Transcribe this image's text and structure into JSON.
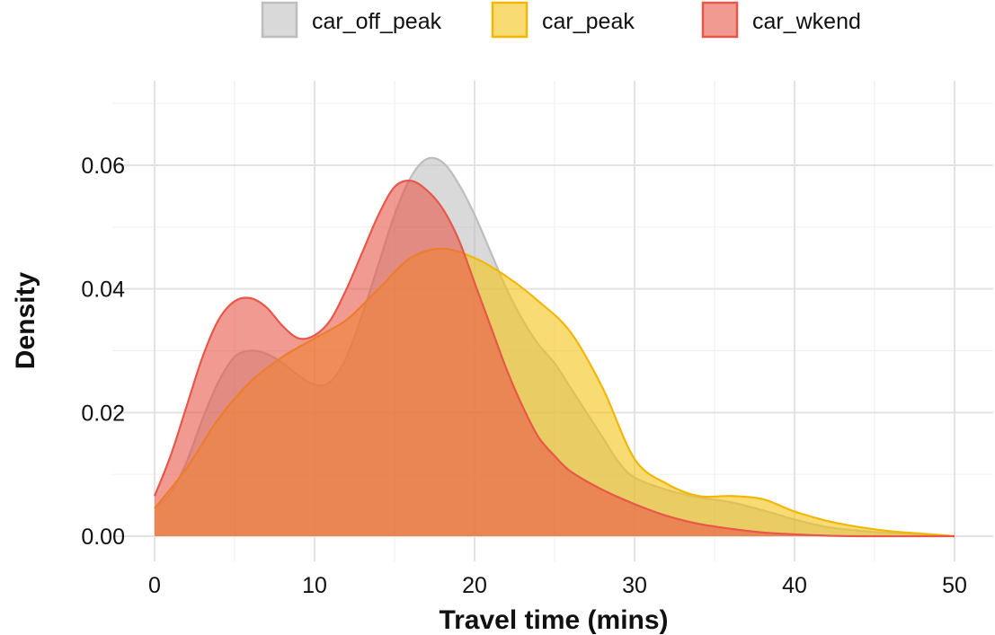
{
  "chart_data": {
    "type": "area",
    "title": "",
    "xlabel": "Travel time (mins)",
    "ylabel": "Density",
    "xlim": [
      0,
      50
    ],
    "ylim": [
      0,
      0.07
    ],
    "x_ticks": [
      0,
      10,
      20,
      30,
      40,
      50
    ],
    "x_tick_labels": [
      "0",
      "10",
      "20",
      "30",
      "40",
      "50"
    ],
    "y_ticks": [
      0,
      0.02,
      0.04,
      0.06
    ],
    "y_tick_labels": [
      "0.00",
      "0.02",
      "0.04",
      "0.06"
    ],
    "grid": true,
    "legend_position": "top",
    "series": [
      {
        "name": "car_off_peak",
        "fill": "#bfbfbf",
        "stroke": "#bdbdbd",
        "points": [
          [
            0,
            0.0045
          ],
          [
            1,
            0.007
          ],
          [
            2,
            0.012
          ],
          [
            3,
            0.019
          ],
          [
            4,
            0.025
          ],
          [
            5,
            0.029
          ],
          [
            6,
            0.03
          ],
          [
            7,
            0.0295
          ],
          [
            8,
            0.028
          ],
          [
            9,
            0.026
          ],
          [
            10,
            0.0245
          ],
          [
            11,
            0.025
          ],
          [
            12,
            0.029
          ],
          [
            13,
            0.036
          ],
          [
            14,
            0.044
          ],
          [
            15,
            0.052
          ],
          [
            16,
            0.058
          ],
          [
            17,
            0.061
          ],
          [
            18,
            0.0605
          ],
          [
            19,
            0.057
          ],
          [
            20,
            0.052
          ],
          [
            21,
            0.046
          ],
          [
            22,
            0.04
          ],
          [
            23,
            0.035
          ],
          [
            24,
            0.031
          ],
          [
            25,
            0.028
          ],
          [
            26,
            0.024
          ],
          [
            27,
            0.02
          ],
          [
            28,
            0.016
          ],
          [
            29,
            0.012
          ],
          [
            30,
            0.0095
          ],
          [
            32,
            0.0075
          ],
          [
            34,
            0.0063
          ],
          [
            36,
            0.0055
          ],
          [
            38,
            0.0042
          ],
          [
            40,
            0.0027
          ],
          [
            42,
            0.0015
          ],
          [
            44,
            0.0009
          ],
          [
            46,
            0.0005
          ],
          [
            48,
            0.0003
          ],
          [
            50,
            0.0
          ]
        ]
      },
      {
        "name": "car_peak",
        "fill": "#f5c316",
        "stroke": "#f2b705",
        "points": [
          [
            0,
            0.0045
          ],
          [
            2,
            0.011
          ],
          [
            4,
            0.019
          ],
          [
            6,
            0.025
          ],
          [
            8,
            0.029
          ],
          [
            10,
            0.032
          ],
          [
            12,
            0.035
          ],
          [
            14,
            0.04
          ],
          [
            16,
            0.045
          ],
          [
            18,
            0.0465
          ],
          [
            20,
            0.045
          ],
          [
            22,
            0.042
          ],
          [
            24,
            0.038
          ],
          [
            26,
            0.033
          ],
          [
            28,
            0.024
          ],
          [
            30,
            0.0125
          ],
          [
            32,
            0.0085
          ],
          [
            34,
            0.0065
          ],
          [
            36,
            0.0065
          ],
          [
            38,
            0.006
          ],
          [
            40,
            0.004
          ],
          [
            42,
            0.0025
          ],
          [
            44,
            0.0015
          ],
          [
            46,
            0.0008
          ],
          [
            48,
            0.0004
          ],
          [
            50,
            0.0
          ]
        ]
      },
      {
        "name": "car_wkend",
        "fill": "#e8574a",
        "stroke": "#e8574a",
        "points": [
          [
            0,
            0.0065
          ],
          [
            1,
            0.013
          ],
          [
            2,
            0.021
          ],
          [
            3,
            0.029
          ],
          [
            4,
            0.035
          ],
          [
            5,
            0.038
          ],
          [
            6,
            0.0385
          ],
          [
            7,
            0.037
          ],
          [
            8,
            0.034
          ],
          [
            9,
            0.032
          ],
          [
            10,
            0.0325
          ],
          [
            11,
            0.035
          ],
          [
            12,
            0.04
          ],
          [
            13,
            0.046
          ],
          [
            14,
            0.052
          ],
          [
            15,
            0.0565
          ],
          [
            16,
            0.0575
          ],
          [
            17,
            0.056
          ],
          [
            18,
            0.053
          ],
          [
            19,
            0.048
          ],
          [
            20,
            0.041
          ],
          [
            21,
            0.034
          ],
          [
            22,
            0.027
          ],
          [
            23,
            0.021
          ],
          [
            24,
            0.016
          ],
          [
            25,
            0.013
          ],
          [
            26,
            0.0105
          ],
          [
            28,
            0.0075
          ],
          [
            30,
            0.0052
          ],
          [
            32,
            0.0033
          ],
          [
            34,
            0.002
          ],
          [
            36,
            0.0012
          ],
          [
            38,
            0.0006
          ],
          [
            40,
            0.0003
          ],
          [
            42,
            0.0001
          ],
          [
            44,
            0.0
          ],
          [
            50,
            0.0
          ]
        ]
      }
    ]
  }
}
